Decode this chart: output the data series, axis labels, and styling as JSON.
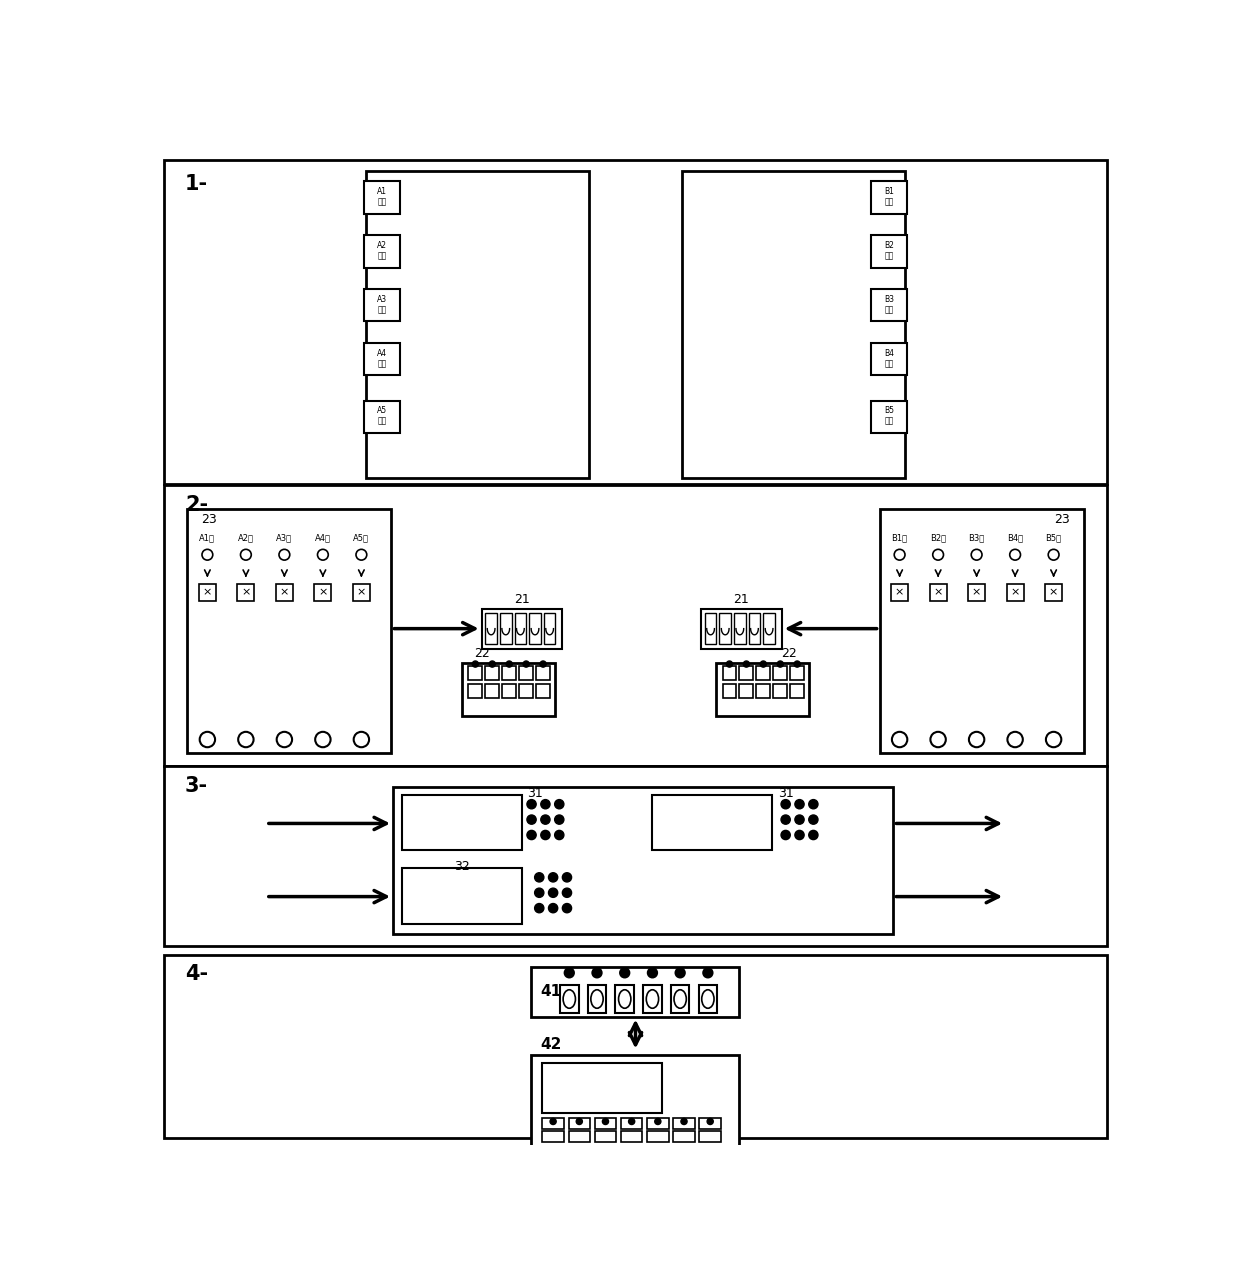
{
  "sec1_label": "1-",
  "sec2_label": "2-",
  "sec3_label": "3-",
  "sec4_label": "4-",
  "sensor_labels_left": [
    "A1\n采样",
    "A2\n采样",
    "A3\n采样",
    "A4\n采样",
    "A5\n采样"
  ],
  "sensor_labels_right": [
    "B1\n采样",
    "B2\n采样",
    "B3\n采样",
    "B4\n采样",
    "B5\n采样"
  ],
  "ch_labels_left": [
    "A1区",
    "A2区",
    "A3区",
    "A4区",
    "A5区"
  ],
  "ch_labels_right": [
    "B1区",
    "B2区",
    "B3区",
    "B4区",
    "B5区"
  ],
  "label_23": "23",
  "label_21": "21",
  "label_22": "22",
  "label_31": "31",
  "label_32": "32",
  "label_41": "41",
  "label_42": "42"
}
